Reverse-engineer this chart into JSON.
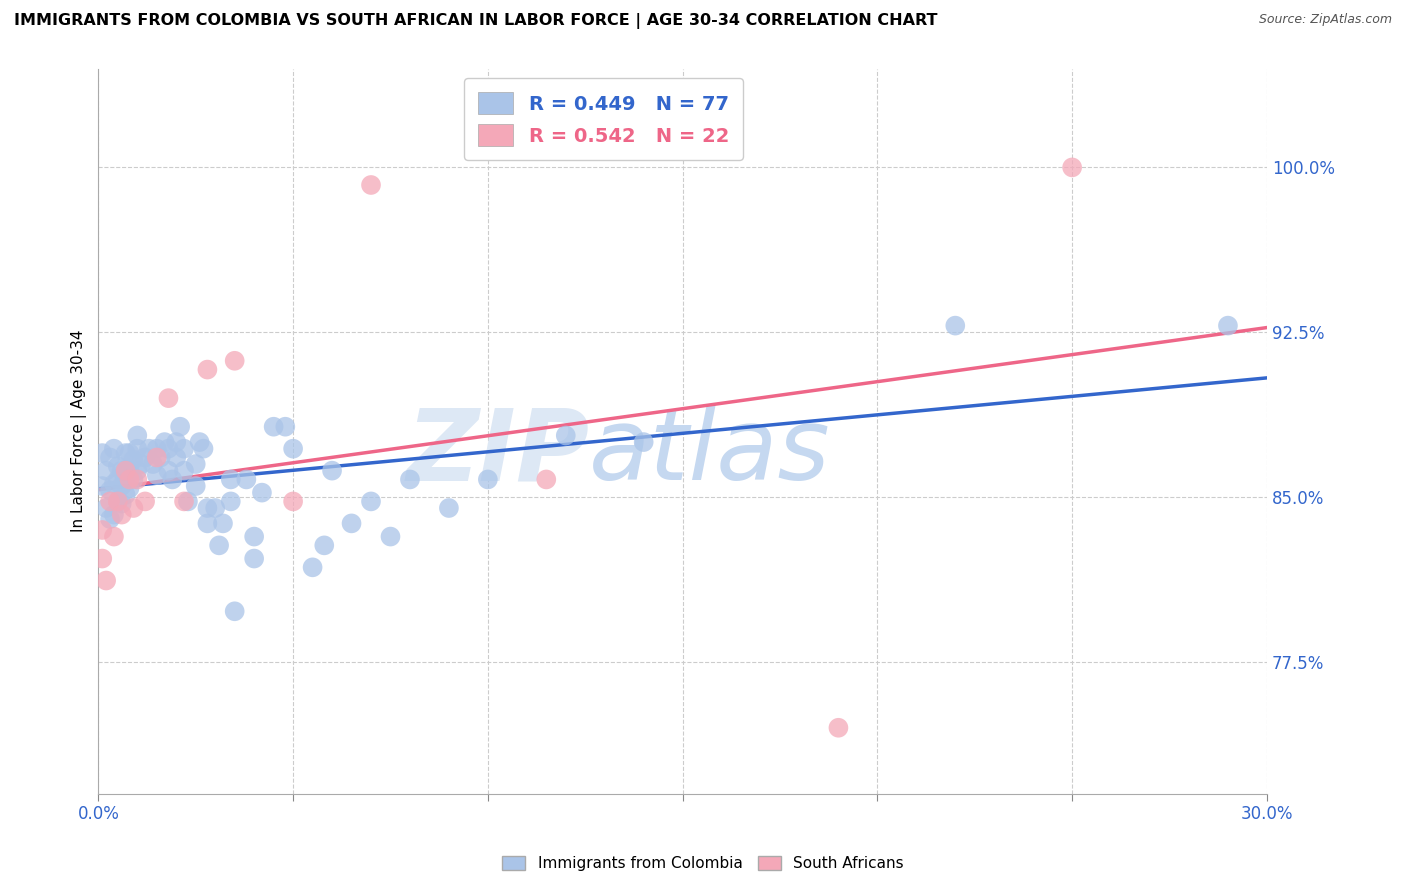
{
  "title": "IMMIGRANTS FROM COLOMBIA VS SOUTH AFRICAN IN LABOR FORCE | AGE 30-34 CORRELATION CHART",
  "source": "Source: ZipAtlas.com",
  "ylabel": "In Labor Force | Age 30-34",
  "yticks": [
    "77.5%",
    "85.0%",
    "92.5%",
    "100.0%"
  ],
  "ytick_vals": [
    0.775,
    0.85,
    0.925,
    1.0
  ],
  "xlim": [
    0.0,
    0.3
  ],
  "ylim": [
    0.715,
    1.045
  ],
  "legend_colombia": "R = 0.449   N = 77",
  "legend_southafrica": "R = 0.542   N = 22",
  "color_colombia": "#aac4e8",
  "color_southafrica": "#f4a8b8",
  "color_colombia_line": "#3366cc",
  "color_southafrica_line": "#ee6688",
  "colombia_x": [
    0.001,
    0.001,
    0.002,
    0.002,
    0.003,
    0.003,
    0.003,
    0.004,
    0.004,
    0.004,
    0.005,
    0.005,
    0.005,
    0.006,
    0.006,
    0.006,
    0.007,
    0.007,
    0.007,
    0.007,
    0.008,
    0.008,
    0.008,
    0.009,
    0.009,
    0.01,
    0.01,
    0.01,
    0.011,
    0.012,
    0.013,
    0.014,
    0.015,
    0.015,
    0.016,
    0.017,
    0.018,
    0.018,
    0.019,
    0.02,
    0.02,
    0.021,
    0.022,
    0.022,
    0.023,
    0.025,
    0.025,
    0.026,
    0.027,
    0.028,
    0.028,
    0.03,
    0.031,
    0.032,
    0.034,
    0.034,
    0.035,
    0.038,
    0.04,
    0.04,
    0.042,
    0.045,
    0.048,
    0.05,
    0.055,
    0.058,
    0.06,
    0.065,
    0.07,
    0.075,
    0.08,
    0.09,
    0.1,
    0.12,
    0.14,
    0.22,
    0.29
  ],
  "colombia_y": [
    0.855,
    0.87,
    0.845,
    0.862,
    0.84,
    0.853,
    0.868,
    0.842,
    0.856,
    0.872,
    0.848,
    0.858,
    0.864,
    0.847,
    0.855,
    0.862,
    0.851,
    0.858,
    0.862,
    0.87,
    0.854,
    0.862,
    0.87,
    0.858,
    0.867,
    0.862,
    0.872,
    0.878,
    0.865,
    0.868,
    0.872,
    0.865,
    0.86,
    0.872,
    0.868,
    0.875,
    0.862,
    0.872,
    0.858,
    0.868,
    0.875,
    0.882,
    0.862,
    0.872,
    0.848,
    0.855,
    0.865,
    0.875,
    0.872,
    0.838,
    0.845,
    0.845,
    0.828,
    0.838,
    0.848,
    0.858,
    0.798,
    0.858,
    0.822,
    0.832,
    0.852,
    0.882,
    0.882,
    0.872,
    0.818,
    0.828,
    0.862,
    0.838,
    0.848,
    0.832,
    0.858,
    0.845,
    0.858,
    0.878,
    0.875,
    0.928,
    0.928
  ],
  "southafrica_x": [
    0.001,
    0.001,
    0.002,
    0.003,
    0.004,
    0.005,
    0.006,
    0.007,
    0.008,
    0.009,
    0.01,
    0.012,
    0.015,
    0.018,
    0.022,
    0.028,
    0.035,
    0.05,
    0.07,
    0.115,
    0.19,
    0.25
  ],
  "southafrica_y": [
    0.835,
    0.822,
    0.812,
    0.848,
    0.832,
    0.848,
    0.842,
    0.862,
    0.858,
    0.845,
    0.858,
    0.848,
    0.868,
    0.895,
    0.848,
    0.908,
    0.912,
    0.848,
    0.992,
    0.858,
    0.745,
    1.0
  ]
}
